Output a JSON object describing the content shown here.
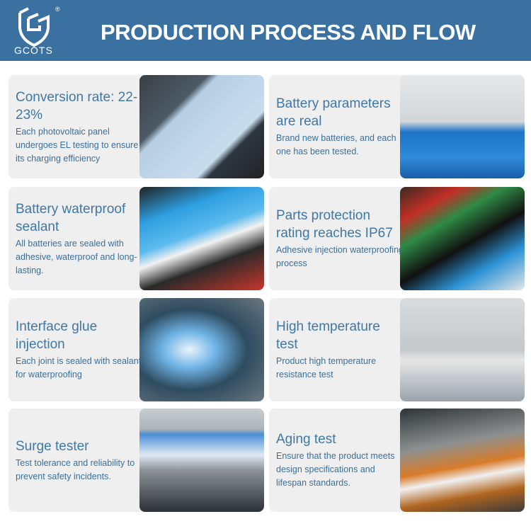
{
  "header": {
    "brand": "GCOTS",
    "registered": "®",
    "title": "PRODUCTION PROCESS AND FLOW",
    "background": "#3a71a0"
  },
  "cards": [
    {
      "title": "Conversion rate: 22-23%",
      "body": "Each photovoltaic panel undergoes EL testing to ensure its charging efficiency"
    },
    {
      "title": "Battery parameters are real",
      "body": "Brand new batteries, and each one has been tested."
    },
    {
      "title": "Battery waterproof sealant",
      "body": "All batteries are sealed with adhesive, waterproof and long-lasting."
    },
    {
      "title": "Parts protection rating reaches IP67",
      "body": "Adhesive injection waterproofing process"
    },
    {
      "title": "Interface glue injection",
      "body": "Each joint is sealed with sealant for waterproofing"
    },
    {
      "title": "High temperature test",
      "body": "Product high temperature resistance test"
    },
    {
      "title": "Surge tester",
      "body": "Test tolerance and reliability to prevent safety incidents."
    },
    {
      "title": "Aging test",
      "body": "Ensure that the product meets design specifications and lifespan standards."
    }
  ]
}
